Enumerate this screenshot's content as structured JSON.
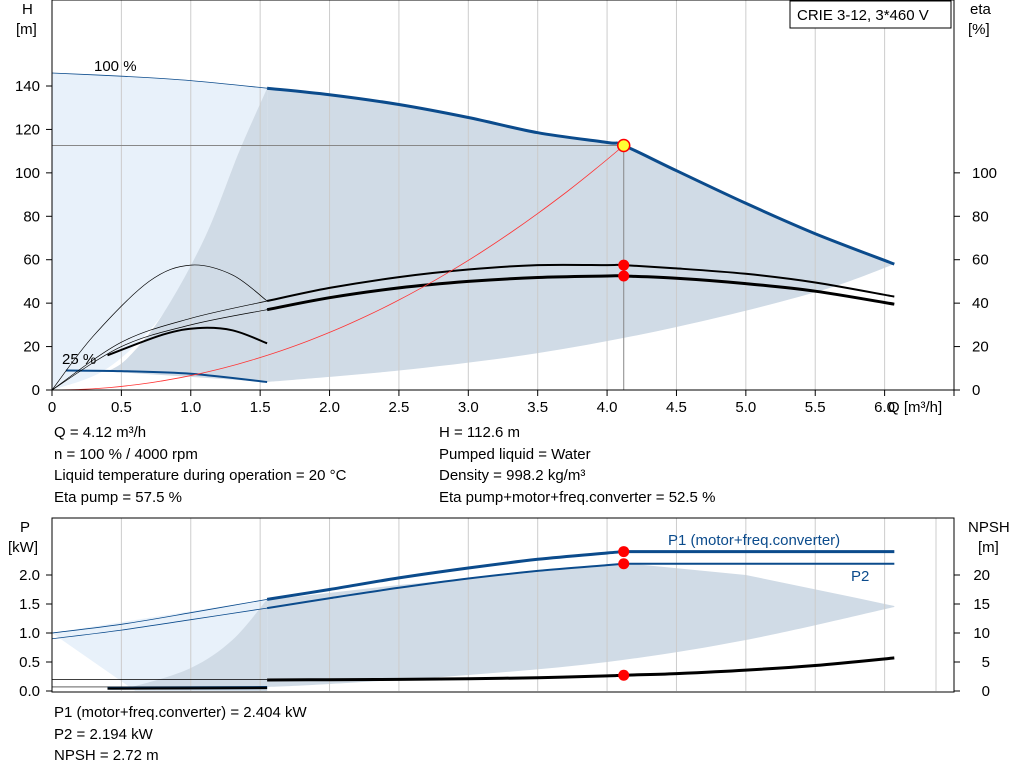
{
  "chart_title": "CRIE 3-12, 3*460 V",
  "chart_data": [
    {
      "type": "line",
      "name": "head-efficiency",
      "xlabel": "Q [m³/h]",
      "ylabel_left": [
        "H",
        "[m]"
      ],
      "ylabel_right": [
        "eta",
        "[%]"
      ],
      "xlim": [
        0,
        6.5
      ],
      "ylim": [
        0,
        150
      ],
      "x_ticks": [
        0,
        0.5,
        1.0,
        1.5,
        2.0,
        2.5,
        3.0,
        3.5,
        4.0,
        4.5,
        5.0,
        5.5,
        6.0
      ],
      "x_tick_labels": [
        "0",
        "0.5",
        "1.0",
        "1.5",
        "2.0",
        "2.5",
        "3.0",
        "3.5",
        "4.0",
        "4.5",
        "5.0",
        "5.5",
        "6.0"
      ],
      "y_left_ticks": [
        0,
        20,
        40,
        60,
        80,
        100,
        120,
        140
      ],
      "y_right_ticks": [
        0,
        20,
        40,
        60,
        80,
        100
      ],
      "speed_labels": [
        "100 %",
        "25 %"
      ],
      "grid": true,
      "series": [
        {
          "name": "H",
          "x": [
            0,
            0.5,
            1.0,
            1.55,
            2.0,
            2.5,
            3.0,
            3.5,
            4.0,
            4.12,
            4.5,
            5.0,
            5.5,
            6.07
          ],
          "values": [
            146,
            144.5,
            142.5,
            139,
            136,
            131.5,
            125.5,
            118.5,
            114,
            112.6,
            101,
            86,
            72,
            58
          ]
        },
        {
          "name": "eta pump",
          "x": [
            1.55,
            2.0,
            2.5,
            3.0,
            3.5,
            4.0,
            4.12,
            4.5,
            5.0,
            5.5,
            6.07
          ],
          "values": [
            41,
            47,
            52,
            55.5,
            57.5,
            57.5,
            57.5,
            56,
            53.5,
            49.5,
            43
          ]
        },
        {
          "name": "eta pump+motor+freq.converter",
          "x": [
            1.55,
            2.0,
            2.5,
            3.0,
            3.5,
            4.0,
            4.12,
            4.5,
            5.0,
            5.5,
            6.07
          ],
          "values": [
            37,
            42.5,
            47,
            50,
            51.8,
            52.5,
            52.5,
            51.5,
            49,
            45.5,
            39.5
          ]
        },
        {
          "name": "system curve",
          "x": [
            0,
            1.0,
            2.0,
            3.0,
            4.12
          ],
          "values": [
            0,
            6.6,
            26.5,
            59.7,
            112.6
          ]
        }
      ],
      "duty_point": {
        "Q": 4.12,
        "H": 112.6,
        "eta_pump": 57.5,
        "eta_total": 52.5
      }
    },
    {
      "type": "line",
      "name": "power-npsh",
      "xlim": [
        0,
        6.5
      ],
      "ylim": [
        0,
        2.5
      ],
      "ylabel_left": [
        "P",
        "[kW]"
      ],
      "ylabel_right": [
        "NPSH",
        "[m]"
      ],
      "y_left_ticks": [
        0.0,
        0.5,
        1.0,
        1.5,
        2.0
      ],
      "y_left_tick_labels": [
        "0.0",
        "0.5",
        "1.0",
        "1.5",
        "2.0"
      ],
      "y_right_ticks": [
        0,
        5,
        10,
        15,
        20
      ],
      "grid": true,
      "series": [
        {
          "name": "P1 (motor+freq.converter)",
          "x": [
            0,
            0.5,
            1.0,
            1.55,
            2.0,
            2.5,
            3.0,
            3.5,
            4.0,
            4.12,
            4.5,
            5.0,
            5.5,
            6.07
          ],
          "values": [
            1.0,
            1.15,
            1.35,
            1.58,
            1.75,
            1.95,
            2.12,
            2.27,
            2.38,
            2.404,
            2.404,
            2.404,
            2.404,
            2.404
          ]
        },
        {
          "name": "P2",
          "x": [
            0,
            0.5,
            1.0,
            1.55,
            2.0,
            2.5,
            3.0,
            3.5,
            4.0,
            4.12,
            4.5,
            5.0,
            5.5,
            6.07
          ],
          "values": [
            0.9,
            1.05,
            1.23,
            1.43,
            1.6,
            1.78,
            1.94,
            2.07,
            2.17,
            2.194,
            2.194,
            2.194,
            2.194,
            2.194
          ]
        },
        {
          "name": "NPSH",
          "x": [
            1.55,
            2.0,
            2.5,
            3.0,
            3.5,
            4.0,
            4.12,
            4.5,
            5.0,
            5.5,
            6.07
          ],
          "values": [
            1.9,
            1.95,
            2.0,
            2.1,
            2.3,
            2.6,
            2.72,
            3.0,
            3.6,
            4.4,
            5.7
          ]
        }
      ]
    }
  ],
  "info_top_left": [
    "Q = 4.12 m³/h",
    "n = 100 % / 4000 rpm",
    "Liquid temperature during operation = 20 °C",
    "Eta pump = 57.5 %"
  ],
  "info_top_right": [
    "H = 112.6 m",
    "Pumped liquid = Water",
    "Density = 998.2 kg/m³",
    "Eta pump+motor+freq.converter = 52.5 %"
  ],
  "info_bottom": [
    "P1 (motor+freq.converter) = 2.404 kW",
    "P2 = 2.194 kW",
    "NPSH = 2.72 m"
  ],
  "colors": {
    "curve_blue": "#0b4b8c",
    "area_dark": "#d0dbe6",
    "area_light": "#e8f1fa",
    "duty": "#ff0000",
    "system": "#ff3333",
    "grid": "#cccccc"
  }
}
